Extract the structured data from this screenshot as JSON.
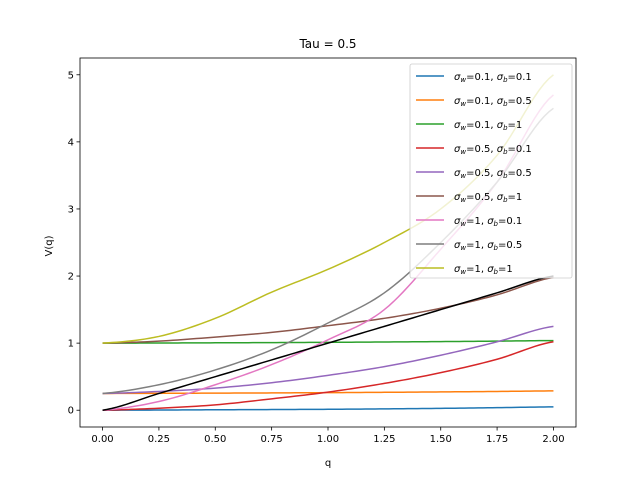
{
  "chart_data": {
    "type": "line",
    "title": "Tau = 0.5",
    "xlabel": "q",
    "ylabel": "V(q)",
    "xlim": [
      -0.1,
      2.1
    ],
    "ylim": [
      -0.25,
      5.25
    ],
    "xticks": [
      "0.00",
      "0.25",
      "0.50",
      "0.75",
      "1.00",
      "1.25",
      "1.50",
      "1.75",
      "2.00"
    ],
    "yticks": [
      "0",
      "1",
      "2",
      "3",
      "4",
      "5"
    ],
    "grid": false,
    "legend_position": "top-right",
    "x": [
      0.0,
      0.25,
      0.5,
      0.75,
      1.0,
      1.25,
      1.5,
      1.75,
      2.0
    ],
    "series": [
      {
        "name": "σw=0.1, σb=0.1",
        "legend": {
          "w": "0.1",
          "b": "0.1"
        },
        "color": "#1f77b4",
        "values": [
          0.0,
          0.003,
          0.007,
          0.01,
          0.014,
          0.02,
          0.028,
          0.038,
          0.05
        ]
      },
      {
        "name": "σw=0.1, σb=0.5",
        "legend": {
          "w": "0.1",
          "b": "0.5"
        },
        "color": "#ff7f0e",
        "values": [
          0.25,
          0.252,
          0.255,
          0.258,
          0.262,
          0.267,
          0.273,
          0.28,
          0.288
        ]
      },
      {
        "name": "σw=0.1, σb=1",
        "legend": {
          "w": "0.1",
          "b": "1"
        },
        "color": "#2ca02c",
        "values": [
          1.0,
          1.002,
          1.005,
          1.008,
          1.012,
          1.017,
          1.023,
          1.03,
          1.038
        ]
      },
      {
        "name": "σw=0.5, σb=0.1",
        "legend": {
          "w": "0.5",
          "b": "0.1"
        },
        "color": "#d62728",
        "values": [
          0.0,
          0.03,
          0.08,
          0.17,
          0.27,
          0.4,
          0.56,
          0.76,
          1.02
        ]
      },
      {
        "name": "σw=0.5, σb=0.5",
        "legend": {
          "w": "0.5",
          "b": "0.5"
        },
        "color": "#9467bd",
        "values": [
          0.25,
          0.28,
          0.33,
          0.41,
          0.52,
          0.65,
          0.82,
          1.02,
          1.25
        ]
      },
      {
        "name": "σw=0.5, σb=1",
        "legend": {
          "w": "0.5",
          "b": "1"
        },
        "color": "#8c564b",
        "values": [
          1.0,
          1.03,
          1.09,
          1.16,
          1.26,
          1.37,
          1.52,
          1.72,
          1.98
        ]
      },
      {
        "name": "σw=1, σb=0.1",
        "legend": {
          "w": "1",
          "b": "0.1"
        },
        "color": "#e377c2",
        "values": [
          0.0,
          0.13,
          0.38,
          0.68,
          1.05,
          1.5,
          2.4,
          3.4,
          4.7
        ]
      },
      {
        "name": "σw=1, σb=0.5",
        "legend": {
          "w": "1",
          "b": "0.5"
        },
        "color": "#7f7f7f",
        "values": [
          0.25,
          0.38,
          0.6,
          0.9,
          1.3,
          1.75,
          2.5,
          3.4,
          4.5
        ]
      },
      {
        "name": "σw=1, σb=1",
        "legend": {
          "w": "1",
          "b": "1"
        },
        "color": "#bcbd22",
        "values": [
          1.0,
          1.1,
          1.37,
          1.76,
          2.1,
          2.5,
          3.0,
          3.8,
          5.0
        ]
      },
      {
        "name": "",
        "color": "#000000",
        "values": [
          0.0,
          0.25,
          0.5,
          0.75,
          1.0,
          1.25,
          1.5,
          1.75,
          2.0
        ]
      }
    ]
  }
}
